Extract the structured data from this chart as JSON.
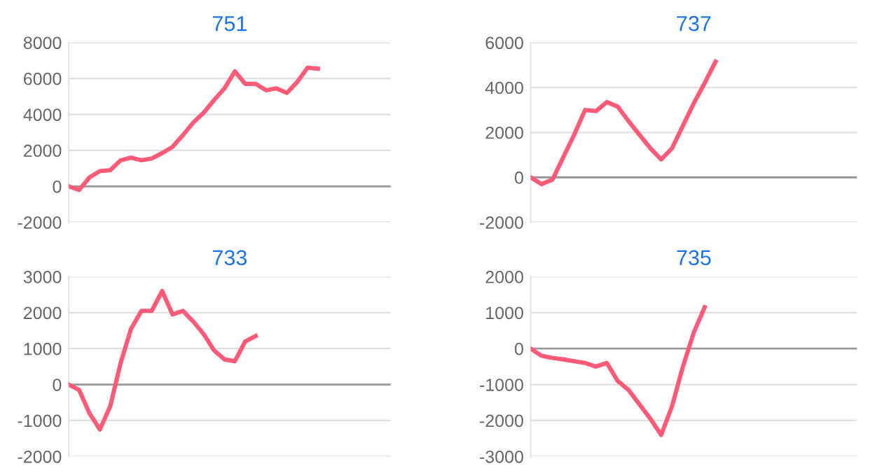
{
  "chart_data": [
    {
      "type": "line",
      "title": "751",
      "categories": [
        null,
        null,
        null,
        null,
        null,
        null,
        null,
        null,
        null,
        null,
        null,
        null,
        null,
        null,
        null,
        null,
        null,
        null,
        null,
        null,
        null,
        null,
        null,
        null,
        null,
        null,
        null,
        null,
        null,
        null,
        null,
        null
      ],
      "series": [
        {
          "color": "#ff5a78",
          "values": [
            0,
            -200,
            500,
            850,
            900,
            1450,
            1600,
            1450,
            1550,
            1850,
            2200,
            2850,
            3550,
            4100,
            4800,
            5450,
            6400,
            5700,
            5700,
            5350,
            5450,
            5200,
            5800,
            6600,
            6550,
            null,
            null,
            null,
            null,
            null,
            null,
            null
          ]
        }
      ],
      "ylim": [
        -2000,
        8000
      ],
      "yticks": [
        -2000,
        0,
        2000,
        4000,
        6000,
        8000
      ],
      "grid": "y",
      "tick_labels": "y",
      "ref_lines": [
        {
          "axis": "y",
          "value": 0,
          "color": "#999999"
        }
      ]
    },
    {
      "type": "line",
      "title": "737",
      "categories": [
        null,
        null,
        null,
        null,
        null,
        null,
        null,
        null,
        null,
        null,
        null,
        null,
        null,
        null,
        null,
        null,
        null,
        null,
        null,
        null,
        null,
        null,
        null,
        null,
        null,
        null,
        null,
        null,
        null,
        null,
        null
      ],
      "series": [
        {
          "color": "#ff5a78",
          "values": [
            0,
            -300,
            -100,
            900,
            1900,
            3000,
            2950,
            3350,
            3150,
            2500,
            1900,
            1300,
            800,
            1300,
            2300,
            3300,
            4200,
            5150,
            null,
            null,
            null,
            null,
            null,
            null,
            null,
            null,
            null,
            null,
            null,
            null,
            null
          ]
        }
      ],
      "ylim": [
        -2000,
        6000
      ],
      "yticks": [
        -2000,
        0,
        2000,
        4000,
        6000
      ],
      "grid": "y",
      "tick_labels": "y",
      "ref_lines": [
        {
          "axis": "y",
          "value": 0,
          "color": "#999999"
        }
      ]
    },
    {
      "type": "line",
      "title": "733",
      "categories": [
        null,
        null,
        null,
        null,
        null,
        null,
        null,
        null,
        null,
        null,
        null,
        null,
        null,
        null,
        null,
        null,
        null,
        null,
        null,
        null,
        null,
        null,
        null,
        null,
        null,
        null,
        null,
        null,
        null,
        null,
        null,
        null
      ],
      "series": [
        {
          "color": "#ff5a78",
          "values": [
            0,
            -150,
            -800,
            -1250,
            -600,
            600,
            1550,
            2050,
            2050,
            2600,
            1950,
            2050,
            1750,
            1400,
            950,
            700,
            650,
            1200,
            1350,
            null,
            null,
            null,
            null,
            null,
            null,
            null,
            null,
            null,
            null,
            null,
            null,
            null
          ]
        }
      ],
      "ylim": [
        -2000,
        3000
      ],
      "yticks": [
        -2000,
        -1000,
        0,
        1000,
        2000,
        3000
      ],
      "grid": "y",
      "tick_labels": "y",
      "ref_lines": [
        {
          "axis": "y",
          "value": 0,
          "color": "#999999"
        }
      ]
    },
    {
      "type": "line",
      "title": "735",
      "categories": [
        null,
        null,
        null,
        null,
        null,
        null,
        null,
        null,
        null,
        null,
        null,
        null,
        null,
        null,
        null,
        null,
        null,
        null,
        null,
        null,
        null,
        null,
        null,
        null,
        null,
        null,
        null,
        null,
        null,
        null,
        null
      ],
      "series": [
        {
          "color": "#ff5a78",
          "values": [
            0,
            -200,
            -260,
            -300,
            -350,
            -400,
            -500,
            -400,
            -900,
            -1150,
            -1550,
            -1950,
            -2400,
            -1600,
            -500,
            450,
            1150,
            null,
            null,
            null,
            null,
            null,
            null,
            null,
            null,
            null,
            null,
            null,
            null,
            null,
            null
          ]
        }
      ],
      "ylim": [
        -3000,
        2000
      ],
      "yticks": [
        -3000,
        -2000,
        -1000,
        0,
        1000,
        2000
      ],
      "grid": "y",
      "tick_labels": "y",
      "ref_lines": [
        {
          "axis": "y",
          "value": 0,
          "color": "#999999"
        }
      ]
    }
  ]
}
